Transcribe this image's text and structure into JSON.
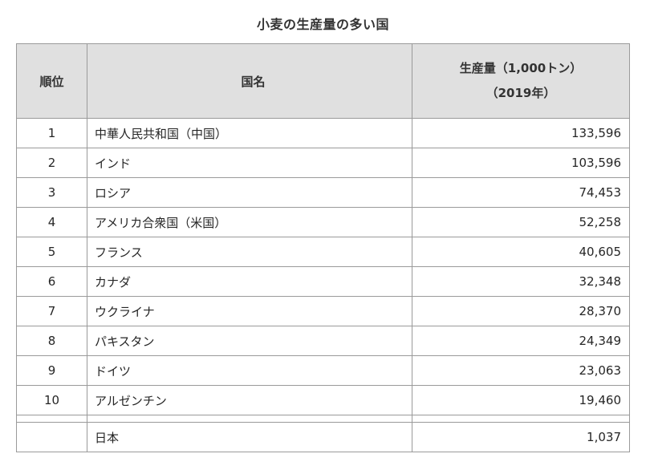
{
  "page": {
    "title": "小麦の生産量の多い国"
  },
  "table": {
    "headers": {
      "rank": "順位",
      "country": "国名",
      "production_line1": "生産量（1,000トン）",
      "production_line2": "（2019年）"
    },
    "rows": [
      {
        "rank": "1",
        "country": "中華人民共和国（中国）",
        "production": "133,596"
      },
      {
        "rank": "2",
        "country": "インド",
        "production": "103,596"
      },
      {
        "rank": "3",
        "country": "ロシア",
        "production": "74,453"
      },
      {
        "rank": "4",
        "country": "アメリカ合衆国（米国）",
        "production": "52,258"
      },
      {
        "rank": "5",
        "country": "フランス",
        "production": "40,605"
      },
      {
        "rank": "6",
        "country": "カナダ",
        "production": "32,348"
      },
      {
        "rank": "7",
        "country": "ウクライナ",
        "production": "28,370"
      },
      {
        "rank": "8",
        "country": "パキスタン",
        "production": "24,349"
      },
      {
        "rank": "9",
        "country": "ドイツ",
        "production": "23,063"
      },
      {
        "rank": "10",
        "country": "アルゼンチン",
        "production": "19,460"
      }
    ],
    "extra_row": {
      "rank": "",
      "country": "日本",
      "production": "1,037"
    }
  },
  "colors": {
    "header_background": "#e0e0e0",
    "grid_line": "#9a9a9a",
    "text": "#262626",
    "title_text": "#333333",
    "page_background": "#ffffff"
  },
  "chart_data": {
    "type": "table",
    "title": "小麦の生産量の多い国",
    "columns": [
      "順位",
      "国名",
      "生産量（1,000トン）（2019年）"
    ],
    "unit": "1,000トン",
    "year": "2019年",
    "rows": [
      [
        1,
        "中華人民共和国（中国）",
        133596
      ],
      [
        2,
        "インド",
        103596
      ],
      [
        3,
        "ロシア",
        74453
      ],
      [
        4,
        "アメリカ合衆国（米国）",
        52258
      ],
      [
        5,
        "フランス",
        40605
      ],
      [
        6,
        "カナダ",
        32348
      ],
      [
        7,
        "ウクライナ",
        28370
      ],
      [
        8,
        "パキスタン",
        24349
      ],
      [
        9,
        "ドイツ",
        23063
      ],
      [
        10,
        "アルゼンチン",
        19460
      ]
    ],
    "extra_rows": [
      [
        null,
        "日本",
        1037
      ]
    ]
  }
}
